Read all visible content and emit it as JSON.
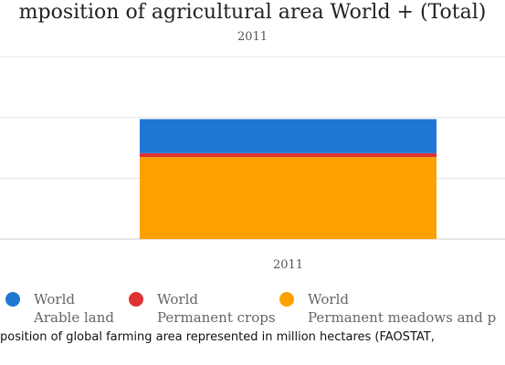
{
  "chart_data": {
    "type": "bar",
    "stacked": true,
    "title": "mposition of agricultural area World + (Total)",
    "subtitle": "2011",
    "categories": [
      "2011"
    ],
    "series": [
      {
        "name": "World Permanent meadows and p",
        "values": [
          3370
        ],
        "color": "#fea100"
      },
      {
        "name": "World Permanent crops",
        "values": [
          160
        ],
        "color": "#dd3333"
      },
      {
        "name": "World Arable land",
        "values": [
          1400
        ],
        "color": "#1f77d4"
      }
    ],
    "ylim": [
      0,
      7500
    ],
    "grid": true,
    "legend_position": "bottom"
  },
  "legend": [
    {
      "line1": "World",
      "line2": "Arable land",
      "color": "#1f77d4"
    },
    {
      "line1": "World",
      "line2": "Permanent crops",
      "color": "#dd3333"
    },
    {
      "line1": "World",
      "line2": "Permanent meadows and p",
      "color": "#fea100"
    }
  ],
  "caption": "position of global farming area represented in million hectares (FAOSTAT,"
}
